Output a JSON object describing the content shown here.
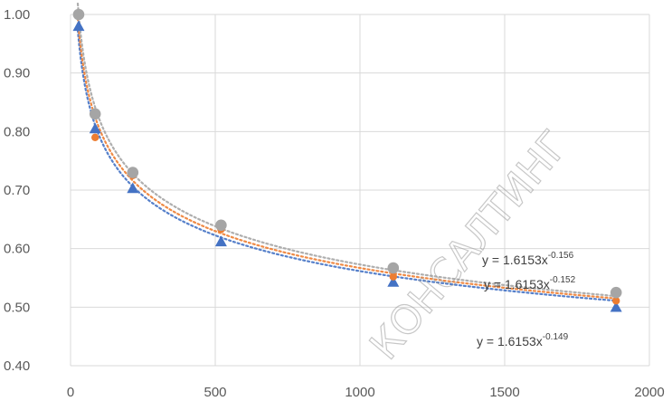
{
  "chart_data": {
    "type": "scatter",
    "xlim": [
      0,
      2000
    ],
    "ylim": [
      0.4,
      1.0
    ],
    "x_ticks": [
      "0",
      "500",
      "1000",
      "1500",
      "2000"
    ],
    "y_ticks": [
      "1.00",
      "0.90",
      "0.80",
      "0.70",
      "0.60",
      "0.50",
      "0.40"
    ],
    "x_tick_values": [
      0,
      500,
      1000,
      1500,
      2000
    ],
    "y_tick_values": [
      1.0,
      0.9,
      0.8,
      0.7,
      0.6,
      0.5,
      0.4
    ],
    "grid": true,
    "series": [
      {
        "marker": "triangle",
        "color": "#4472C4",
        "x": [
          28,
          85,
          215,
          520,
          1115,
          1885
        ],
        "y": [
          0.98,
          0.805,
          0.703,
          0.612,
          0.543,
          0.5
        ],
        "trend_exponent": -0.149
      },
      {
        "marker": "circle-small",
        "color": "#ED7D31",
        "x": [
          28,
          85,
          215,
          520,
          1115,
          1885
        ],
        "y": [
          1.0,
          0.79,
          0.725,
          0.633,
          0.552,
          0.511
        ],
        "trend_exponent": -0.152
      },
      {
        "marker": "circle",
        "color": "#A5A5A5",
        "x": [
          28,
          85,
          215,
          520,
          1115,
          1885
        ],
        "y": [
          1.0,
          0.83,
          0.73,
          0.64,
          0.567,
          0.525
        ],
        "trend_exponent": -0.156
      }
    ],
    "equations": [
      {
        "base": "y = 1.6153x",
        "exp": "-0.156"
      },
      {
        "base": "y = 1.6153x",
        "exp": "-0.152"
      },
      {
        "base": "y = 1.6153x",
        "exp": "-0.149"
      }
    ],
    "watermark": "КОНСАЛТИНГ"
  }
}
